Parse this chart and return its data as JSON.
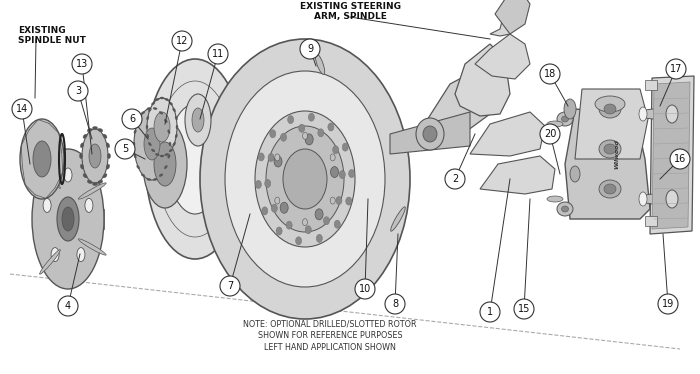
{
  "bg_color": "#ffffff",
  "line_color": "#444444",
  "edge_color": "#555555",
  "dashed_color": "#aaaaaa",
  "fill_light": "#d8d8d8",
  "fill_mid": "#c0c0c0",
  "fill_dark": "#a8a8a8",
  "fill_white": "#f0f0f0",
  "note_text": "NOTE: OPTIONAL DRILLED/SLOTTED ROTOR\nSHOWN FOR REFERENCE PURPOSES\nLEFT HAND APPLICATION SHOWN",
  "label_spindle_nut": "EXISTING\nSPINDLE NUT",
  "label_steering": "EXISTING STEERING\nARM, SPINDLE",
  "figsize": [
    7.0,
    3.74
  ],
  "dpi": 100,
  "xlim": [
    0,
    700
  ],
  "ylim": [
    0,
    374
  ]
}
